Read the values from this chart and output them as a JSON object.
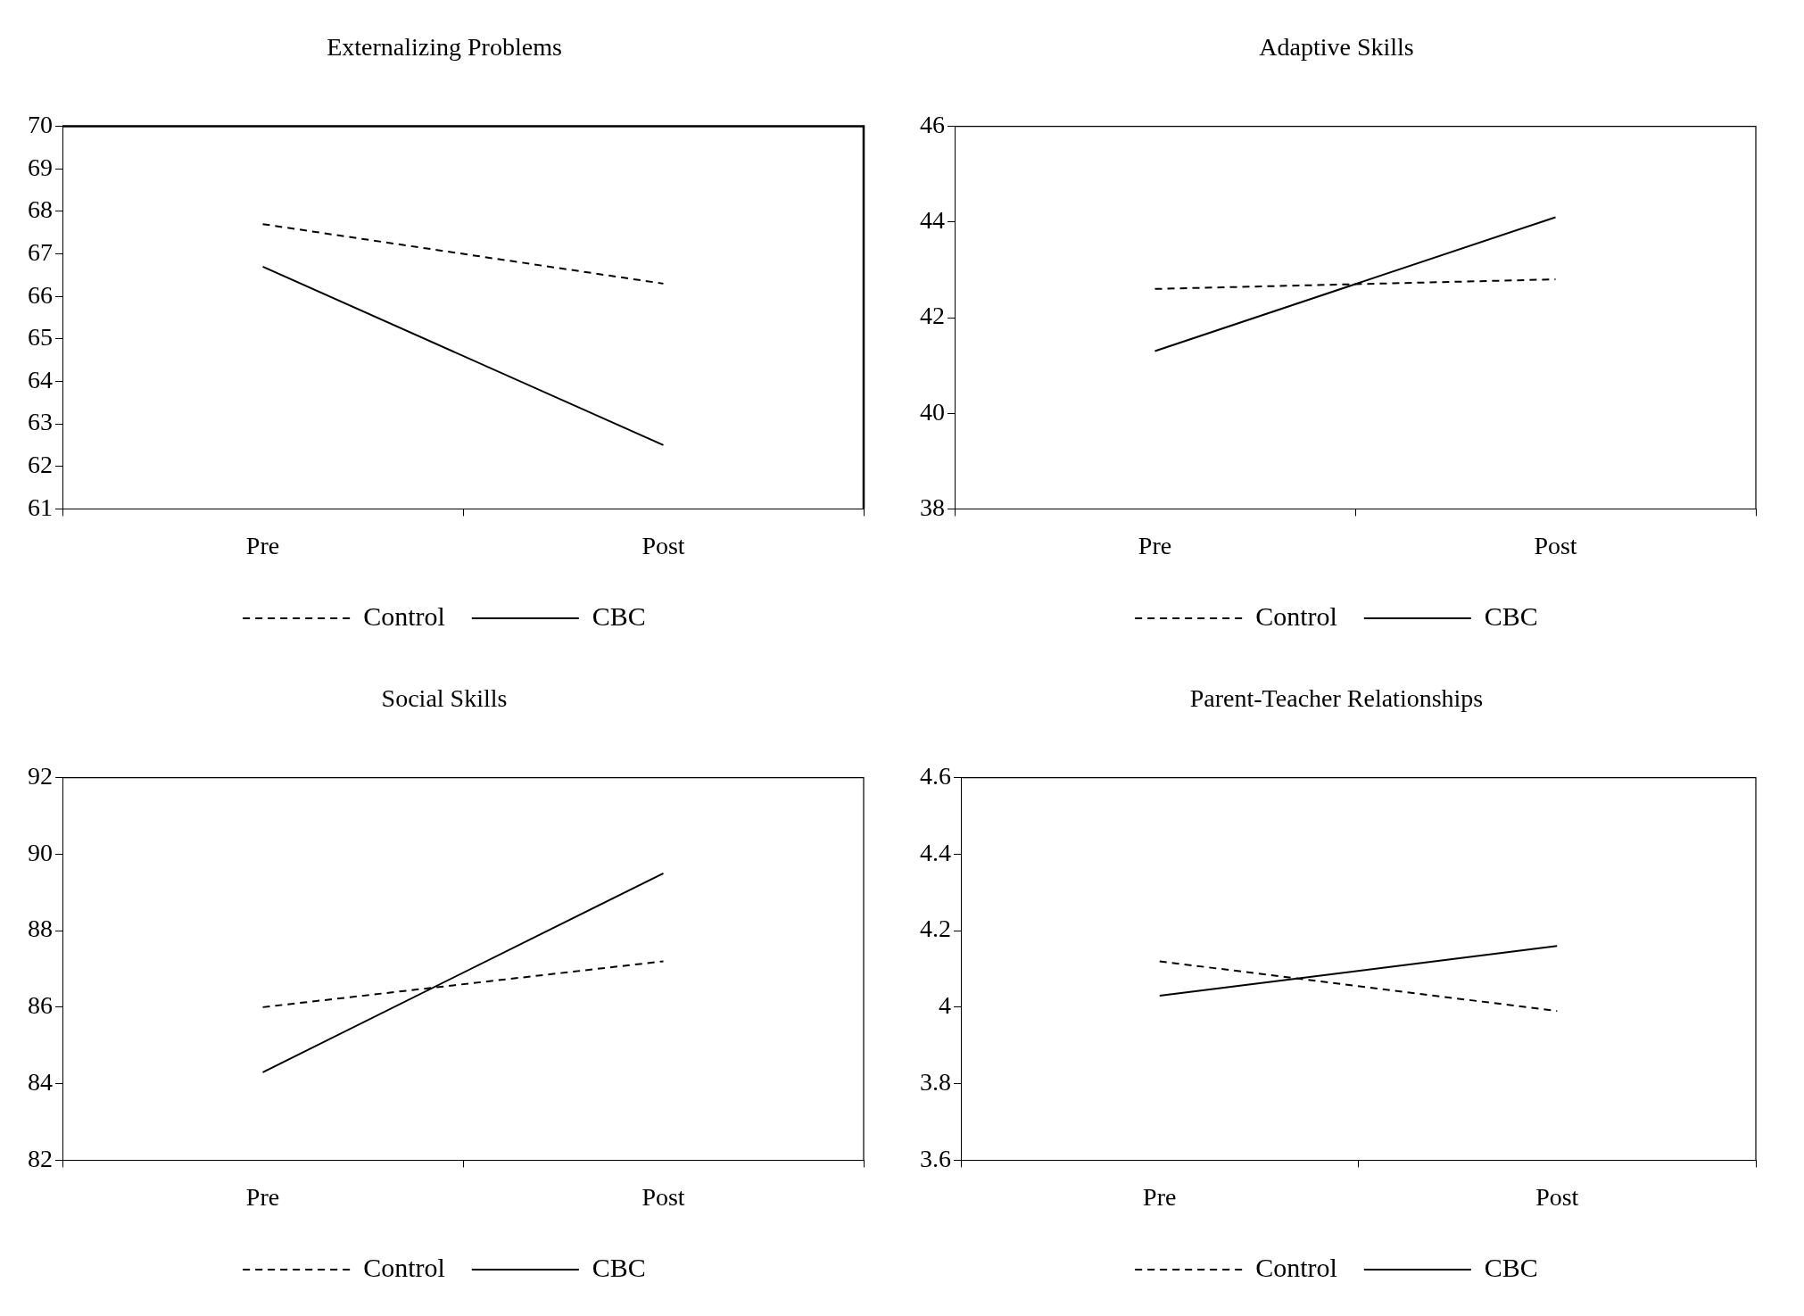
{
  "chart_data": [
    {
      "type": "line",
      "title": "Externalizing Problems",
      "categories": [
        "Pre",
        "Post"
      ],
      "ylim": [
        61,
        70
      ],
      "yticks": [
        61,
        62,
        63,
        64,
        65,
        66,
        67,
        68,
        69,
        70
      ],
      "grid": false,
      "legend": "bottom",
      "marker": "none",
      "series": [
        {
          "name": "Control",
          "color": "#000000",
          "line_style": "dashed",
          "values": [
            67.7,
            66.3
          ]
        },
        {
          "name": "CBC",
          "color": "#000000",
          "line_style": "solid",
          "values": [
            66.7,
            62.5
          ]
        }
      ]
    },
    {
      "type": "line",
      "title": "Adaptive Skills",
      "categories": [
        "Pre",
        "Post"
      ],
      "ylim": [
        38,
        46
      ],
      "yticks": [
        38,
        40,
        42,
        44,
        46
      ],
      "grid": false,
      "legend": "bottom",
      "marker": "none",
      "series": [
        {
          "name": "Control",
          "color": "#000000",
          "line_style": "dashed",
          "values": [
            42.6,
            42.8
          ]
        },
        {
          "name": "CBC",
          "color": "#000000",
          "line_style": "solid",
          "values": [
            41.3,
            44.1
          ]
        }
      ]
    },
    {
      "type": "line",
      "title": "Social Skills",
      "categories": [
        "Pre",
        "Post"
      ],
      "ylim": [
        82,
        92
      ],
      "yticks": [
        82,
        84,
        86,
        88,
        90,
        92
      ],
      "grid": false,
      "legend": "bottom",
      "marker": "none",
      "series": [
        {
          "name": "Control",
          "color": "#000000",
          "line_style": "dashed",
          "values": [
            86.0,
            87.2
          ]
        },
        {
          "name": "CBC",
          "color": "#000000",
          "line_style": "solid",
          "values": [
            84.3,
            89.5
          ]
        }
      ]
    },
    {
      "type": "line",
      "title": "Parent-Teacher Relationships",
      "categories": [
        "Pre",
        "Post"
      ],
      "ylim": [
        3.6,
        4.6
      ],
      "yticks": [
        {
          "value": 3.6,
          "label": "3.6"
        },
        {
          "value": 3.8,
          "label": "3.8"
        },
        {
          "value": 4,
          "label": "4"
        },
        {
          "value": 4.2,
          "label": "4.2"
        },
        {
          "value": 4.4,
          "label": "4.4"
        },
        {
          "value": 4.6,
          "label": "4.6"
        }
      ],
      "grid": false,
      "legend": "bottom",
      "marker": "none",
      "series": [
        {
          "name": "Control",
          "color": "#000000",
          "line_style": "dashed",
          "values": [
            4.12,
            3.99
          ]
        },
        {
          "name": "CBC",
          "color": "#000000",
          "line_style": "solid",
          "values": [
            4.03,
            4.16
          ]
        }
      ]
    }
  ]
}
